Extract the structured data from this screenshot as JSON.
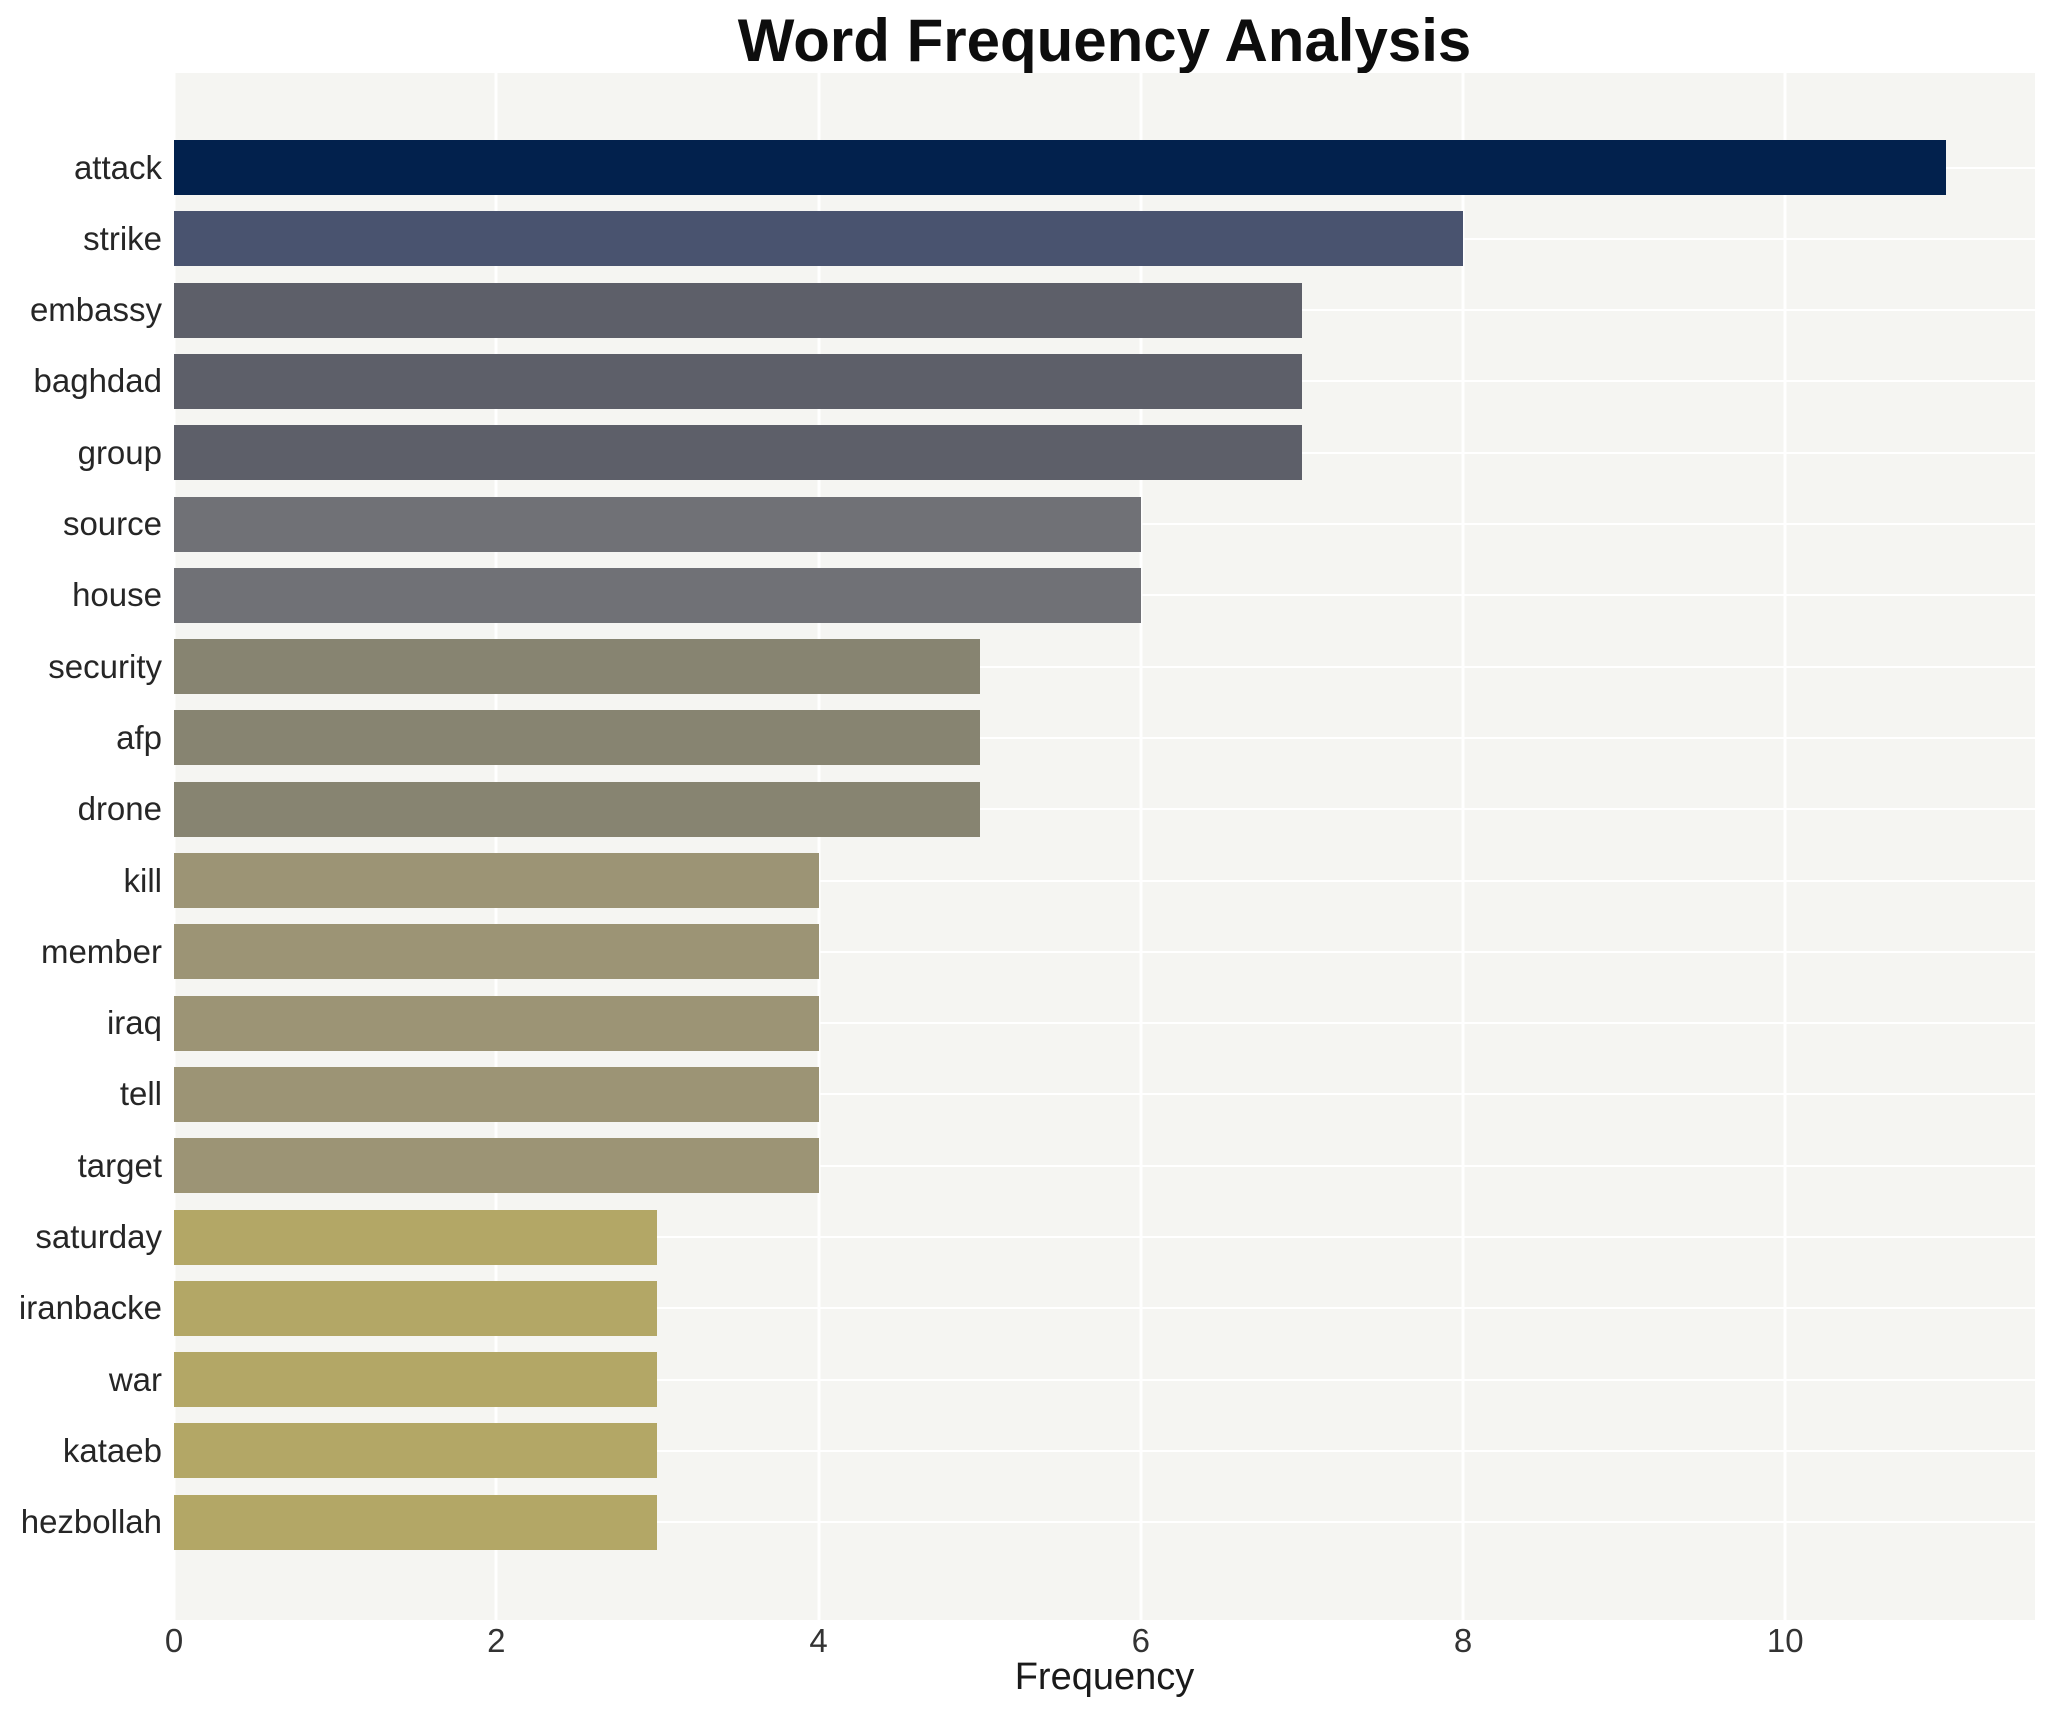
{
  "chart_data": {
    "type": "bar",
    "orientation": "horizontal",
    "title": "Word Frequency Analysis",
    "xlabel": "Frequency",
    "categories": [
      "attack",
      "strike",
      "embassy",
      "baghdad",
      "group",
      "source",
      "house",
      "security",
      "afp",
      "drone",
      "kill",
      "member",
      "iraq",
      "tell",
      "target",
      "saturday",
      "iranbacke",
      "war",
      "kataeb",
      "hezbollah"
    ],
    "values": [
      11,
      8,
      7,
      7,
      7,
      6,
      6,
      5,
      5,
      5,
      4,
      4,
      4,
      4,
      4,
      3,
      3,
      3,
      3,
      3
    ],
    "bar_colors": [
      "#02214d",
      "#49536f",
      "#5d5f69",
      "#5d5f69",
      "#5d5f69",
      "#707176",
      "#707176",
      "#878471",
      "#878471",
      "#878471",
      "#9c9475",
      "#9c9475",
      "#9c9475",
      "#9c9475",
      "#9c9475",
      "#b3a766",
      "#b3a766",
      "#b3a766",
      "#b3a766",
      "#b3a766"
    ],
    "xlim": [
      0,
      11.55
    ],
    "xticks": [
      0,
      2,
      4,
      6,
      8,
      10
    ],
    "grid": true,
    "legend": false,
    "plot_background": "#f5f5f2",
    "grid_color": "#ffffff"
  }
}
